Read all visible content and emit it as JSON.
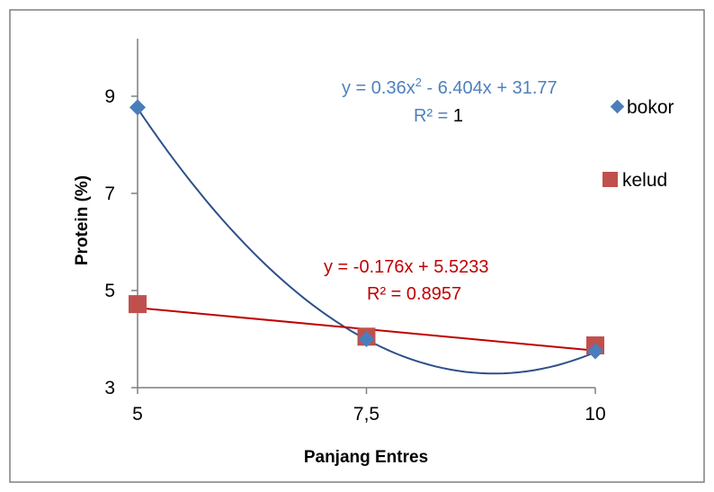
{
  "chart_data": {
    "type": "scatter",
    "xlabel": "Panjang Entres",
    "ylabel": "Protein  (%)",
    "x": [
      5,
      7.5,
      10
    ],
    "x_tick_labels": [
      "5",
      "7,5",
      "10"
    ],
    "y_ticks": [
      3,
      5,
      7,
      9
    ],
    "y_tick_labels": [
      "3",
      "5",
      "7",
      "9"
    ],
    "xlim": [
      5,
      10
    ],
    "ylim": [
      3,
      10
    ],
    "grid": false,
    "legend": "right",
    "series": [
      {
        "name": "bokor",
        "values": [
          8.77,
          4.0,
          3.75
        ],
        "color": "#4a7ebb",
        "line_color": "#2e4f8a",
        "marker": "diamond",
        "trendline": {
          "type": "polynomial",
          "coeffs": [
            0.36,
            -6.404,
            31.77
          ],
          "equation_prefix": "y = 0.36x",
          "equation_sup": "2",
          "equation_suffix": " - 6.404x + 31.77",
          "r2_prefix": "R² = ",
          "r2_value": "1"
        }
      },
      {
        "name": "kelud",
        "values": [
          4.72,
          4.05,
          3.87
        ],
        "color": "#c0504d",
        "line_color": "#c00000",
        "marker": "square",
        "trendline": {
          "type": "linear",
          "coeffs": [
            -0.176,
            5.5233
          ],
          "equation": "y = -0.176x + 5.5233",
          "r2_text": "R² = 0.8957"
        }
      }
    ]
  }
}
